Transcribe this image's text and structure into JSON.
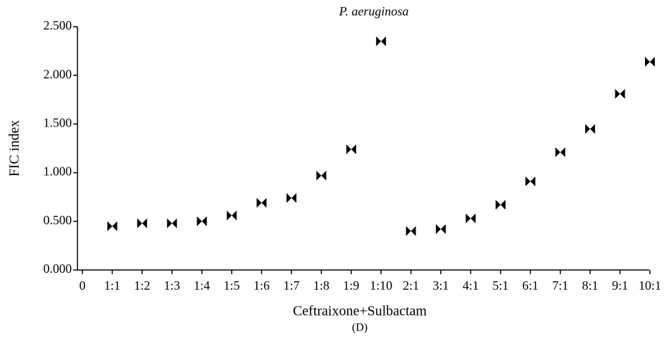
{
  "chart_data": {
    "type": "scatter",
    "title": "P. aeruginosa",
    "xlabel": "Ceftraixone+Sulbactam",
    "caption": "(D)",
    "ylabel": "FIC index",
    "categories": [
      "0",
      "1:1",
      "1:2",
      "1:3",
      "1:4",
      "1:5",
      "1:6",
      "1:7",
      "1:8",
      "1:9",
      "1:10",
      "2:1",
      "3:1",
      "4:1",
      "5:1",
      "6:1",
      "7:1",
      "8:1",
      "9:1",
      "10:1"
    ],
    "values": [
      null,
      0.45,
      0.48,
      0.48,
      0.5,
      0.56,
      0.69,
      0.74,
      0.97,
      1.24,
      2.35,
      0.4,
      0.42,
      0.53,
      0.67,
      0.91,
      1.21,
      1.45,
      1.81,
      2.14
    ],
    "color": "#000000",
    "ylim": [
      0,
      2.5
    ],
    "yticks": [
      {
        "value": 0,
        "label": "0.000"
      },
      {
        "value": 0.5,
        "label": "0.500"
      },
      {
        "value": 1,
        "label": "1.000"
      },
      {
        "value": 1.5,
        "label": "1.500"
      },
      {
        "value": 2,
        "label": "2.000"
      },
      {
        "value": 2.5,
        "label": "2.500"
      }
    ],
    "grid": false
  }
}
